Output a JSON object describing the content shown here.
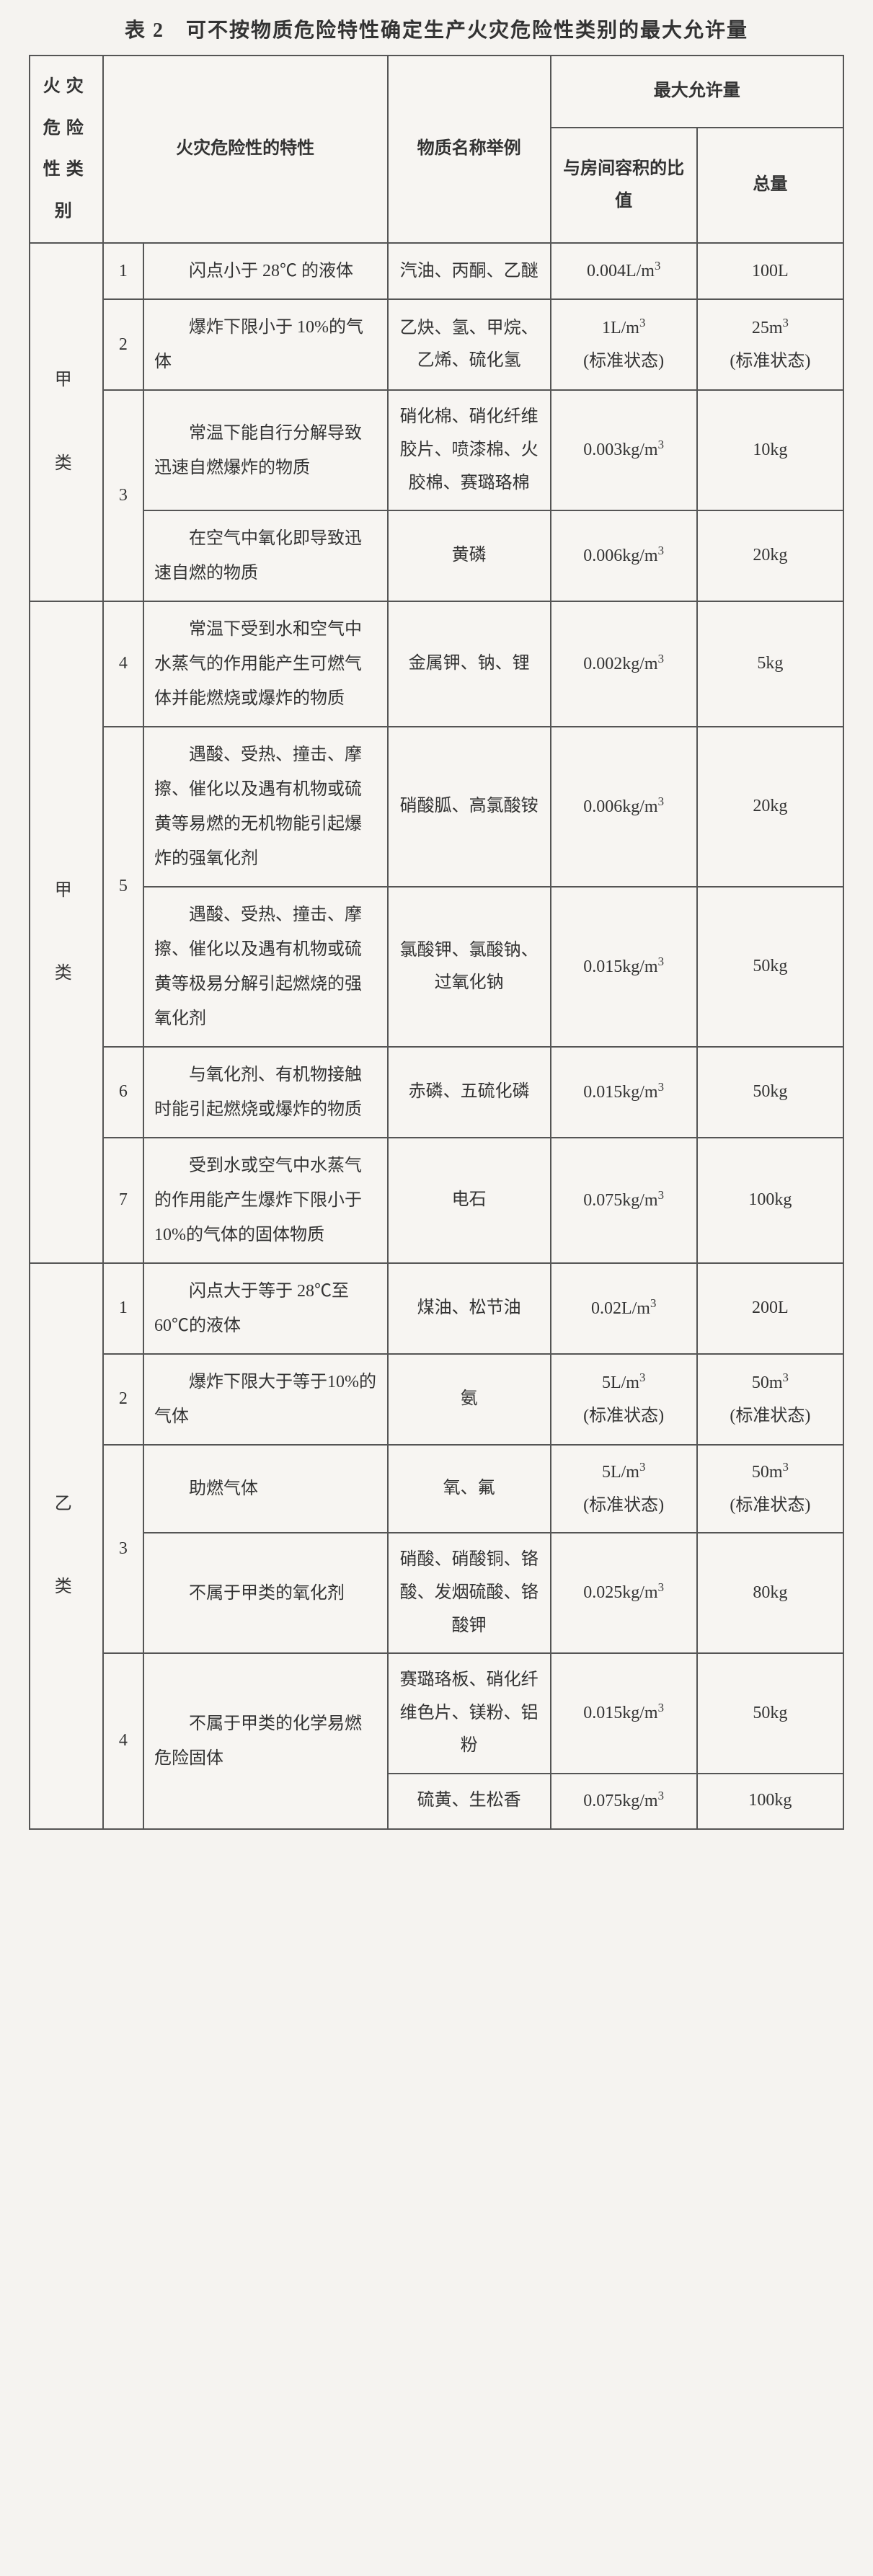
{
  "title": "表 2　可不按物质危险特性确定生产火灾危险性类别的最大允许量",
  "headers": {
    "col_category": "火灾危险性类别",
    "col_characteristic": "火灾危险性的特性",
    "col_examples": "物质名称举例",
    "col_maxgroup": "最大允许量",
    "col_ratio": "与房间容积的比值",
    "col_total": "总量"
  },
  "cat_jia1": "甲\n\n类",
  "cat_jia2": "甲\n\n类",
  "cat_yi": "乙\n\n类",
  "rows": {
    "r1": {
      "num": "1",
      "char": "闪点小于 28℃ 的液体",
      "ex": "汽油、丙酮、乙醚",
      "ratio": "0.004L/m³",
      "total": "100L"
    },
    "r2": {
      "num": "2",
      "char": "爆炸下限小于 10%的气体",
      "ex": "乙炔、氢、甲烷、乙烯、硫化氢",
      "ratio": "1L/m³\n(标准状态)",
      "total": "25m³\n(标准状态)"
    },
    "r3a": {
      "num": "3",
      "char": "常温下能自行分解导致迅速自燃爆炸的物质",
      "ex": "硝化棉、硝化纤维胶片、喷漆棉、火胶棉、赛璐珞棉",
      "ratio": "0.003kg/m³",
      "total": "10kg"
    },
    "r3b": {
      "char": "在空气中氧化即导致迅速自燃的物质",
      "ex": "黄磷",
      "ratio": "0.006kg/m³",
      "total": "20kg"
    },
    "r4": {
      "num": "4",
      "char": "常温下受到水和空气中水蒸气的作用能产生可燃气体并能燃烧或爆炸的物质",
      "ex": "金属钾、钠、锂",
      "ratio": "0.002kg/m³",
      "total": "5kg"
    },
    "r5a": {
      "num": "5",
      "char": "遇酸、受热、撞击、摩擦、催化以及遇有机物或硫黄等易燃的无机物能引起爆炸的强氧化剂",
      "ex": "硝酸胍、高氯酸铵",
      "ratio": "0.006kg/m³",
      "total": "20kg"
    },
    "r5b": {
      "char": "遇酸、受热、撞击、摩擦、催化以及遇有机物或硫黄等极易分解引起燃烧的强氧化剂",
      "ex": "氯酸钾、氯酸钠、过氧化钠",
      "ratio": "0.015kg/m³",
      "total": "50kg"
    },
    "r6": {
      "num": "6",
      "char": "与氧化剂、有机物接触时能引起燃烧或爆炸的物质",
      "ex": "赤磷、五硫化磷",
      "ratio": "0.015kg/m³",
      "total": "50kg"
    },
    "r7": {
      "num": "7",
      "char": "受到水或空气中水蒸气的作用能产生爆炸下限小于 10%的气体的固体物质",
      "ex": "电石",
      "ratio": "0.075kg/m³",
      "total": "100kg"
    },
    "y1": {
      "num": "1",
      "char": "闪点大于等于 28℃至 60℃的液体",
      "ex": "煤油、松节油",
      "ratio": "0.02L/m³",
      "total": "200L"
    },
    "y2": {
      "num": "2",
      "char": "爆炸下限大于等于10%的气体",
      "ex": "氨",
      "ratio": "5L/m³\n(标准状态)",
      "total": "50m³\n(标准状态)"
    },
    "y3a": {
      "num": "3",
      "char": "助燃气体",
      "ex": "氧、氟",
      "ratio": "5L/m³\n(标准状态)",
      "total": "50m³\n(标准状态)"
    },
    "y3b": {
      "char": "不属于甲类的氧化剂",
      "ex": "硝酸、硝酸铜、铬酸、发烟硫酸、铬酸钾",
      "ratio": "0.025kg/m³",
      "total": "80kg"
    },
    "y4a": {
      "num": "4",
      "char": "不属于甲类的化学易燃危险固体",
      "ex": "赛璐珞板、硝化纤维色片、镁粉、铝粉",
      "ratio": "0.015kg/m³",
      "total": "50kg"
    },
    "y4b": {
      "ex": "硫黄、生松香",
      "ratio": "0.075kg/m³",
      "total": "100kg"
    }
  }
}
